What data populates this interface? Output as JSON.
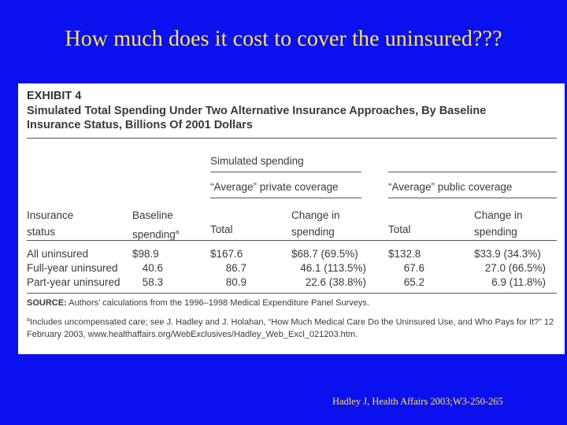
{
  "slide": {
    "title": "How much does it cost to cover the uninsured???",
    "citation": "Hadley J, Health Affairs 2003;W3-250-265"
  },
  "exhibit": {
    "label": "EXHIBIT 4",
    "title_line1": "Simulated Total Spending Under Two Alternative Insurance Approaches, By Baseline",
    "title_line2": "Insurance Status, Billions Of 2001 Dollars",
    "group_header": "Simulated spending",
    "private_header": "“Average” private coverage",
    "public_header": "“Average” public coverage",
    "col_status_1": "Insurance",
    "col_status_2": "status",
    "col_baseline_1": "Baseline",
    "col_baseline_2": "spending",
    "col_baseline_sup": "a",
    "col_total": "Total",
    "col_change_1": "Change in",
    "col_change_2": "spending",
    "rows": [
      {
        "status": "All uninsured",
        "baseline": "$98.9",
        "priv_total": "$167.6",
        "priv_change": "$68.7 (69.5%)",
        "pub_total": "$132.8",
        "pub_change": "$33.9 (34.3%)"
      },
      {
        "status": "Full-year uninsured",
        "baseline": "40.6",
        "priv_total": "86.7",
        "priv_change": "46.1 (113.5%)",
        "pub_total": "67.6",
        "pub_change": "27.0 (66.5%)"
      },
      {
        "status": "Part-year uninsured",
        "baseline": "58.3",
        "priv_total": "80.9",
        "priv_change": "22.6 (38.8%)",
        "pub_total": "65.2",
        "pub_change": "6.9 (11.8%)"
      }
    ],
    "source_label": "SOURCE:",
    "source_text": " Authors’ calculations from the 1996–1998 Medical Expenditure Panel Surveys.",
    "note_sup": "a",
    "note_text": "Includes uncompensated care; see J. Hadley and J. Holahan, “How Much Medical Care Do the Uninsured Use, and Who Pays for It?” 12 February 2003, www.healthaffairs.org/WebExclusives/Hadley_Web_Excl_021203.htm."
  }
}
